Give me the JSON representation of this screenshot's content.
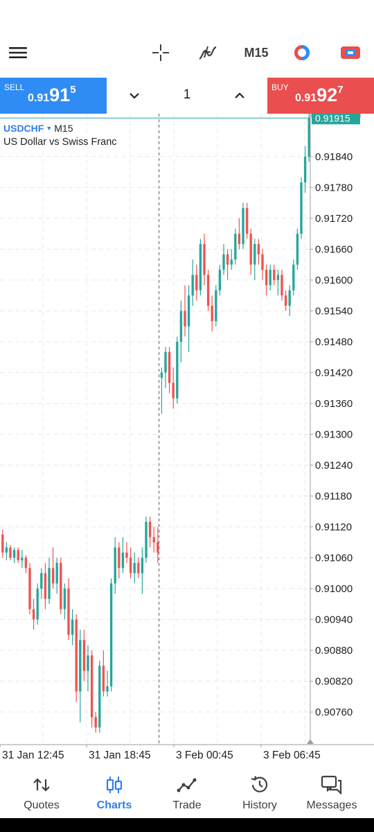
{
  "toolbar": {
    "menu_icon": "hamburger-menu-icon",
    "crosshair_icon": "crosshair-icon",
    "indicators_icon": "indicator-f-icon",
    "timeframe": "M15",
    "algo_icon": "algo-trading-icon",
    "oneclick_icon": "one-click-trading-icon"
  },
  "trade_panel": {
    "sell": {
      "label": "SELL",
      "price_small": "0.91",
      "price_big": "91",
      "price_sup": "5"
    },
    "buy": {
      "label": "BUY",
      "price_small": "0.91",
      "price_big": "92",
      "price_sup": "7"
    },
    "volume": "1"
  },
  "chart": {
    "symbol": "USDCHF",
    "timeframe": "M15",
    "description": "US Dollar vs Swiss Franc",
    "ask_label": "0.91927",
    "bid_label": "0.91915",
    "colors": {
      "bull": "#26a69a",
      "bear": "#ef5350",
      "ask_line": "#ef5350",
      "bid_line": "#26a69a",
      "grid": "#e8e8e8"
    }
  },
  "chart_data": {
    "type": "candlestick",
    "y_ticks": [
      "0.91840",
      "0.91780",
      "0.91720",
      "0.91660",
      "0.91600",
      "0.91540",
      "0.91480",
      "0.91420",
      "0.91360",
      "0.91300",
      "0.91240",
      "0.91180",
      "0.91120",
      "0.91060",
      "0.91000",
      "0.90940",
      "0.90880",
      "0.90820",
      "0.90760"
    ],
    "x_ticks": [
      "31 Jan 12:45",
      "31 Jan 18:45",
      "3 Feb 00:45",
      "3 Feb 06:45"
    ],
    "ylim": [
      0.9071,
      0.9191
    ],
    "period_separator_index": 41,
    "candles": [
      [
        0.91105,
        0.91115,
        0.9106,
        0.9107
      ],
      [
        0.9107,
        0.9109,
        0.91055,
        0.9108
      ],
      [
        0.9108,
        0.91085,
        0.91055,
        0.9106
      ],
      [
        0.9106,
        0.9108,
        0.9105,
        0.91075
      ],
      [
        0.91075,
        0.9108,
        0.9105,
        0.91055
      ],
      [
        0.91055,
        0.91075,
        0.9104,
        0.9106
      ],
      [
        0.9106,
        0.91065,
        0.9103,
        0.9104
      ],
      [
        0.9104,
        0.9105,
        0.9095,
        0.9096
      ],
      [
        0.9096,
        0.9098,
        0.9092,
        0.9094
      ],
      [
        0.9094,
        0.9101,
        0.9093,
        0.91
      ],
      [
        0.91,
        0.9104,
        0.9098,
        0.9103
      ],
      [
        0.9103,
        0.9105,
        0.9096,
        0.9098
      ],
      [
        0.9098,
        0.9106,
        0.9097,
        0.9104
      ],
      [
        0.9104,
        0.9108,
        0.91,
        0.9101
      ],
      [
        0.9101,
        0.9106,
        0.9099,
        0.9105
      ],
      [
        0.9105,
        0.9106,
        0.9095,
        0.9096
      ],
      [
        0.9096,
        0.9101,
        0.9094,
        0.91
      ],
      [
        0.91,
        0.9102,
        0.909,
        0.9091
      ],
      [
        0.9091,
        0.9096,
        0.9089,
        0.9094
      ],
      [
        0.9094,
        0.9095,
        0.9078,
        0.908
      ],
      [
        0.908,
        0.9092,
        0.9074,
        0.909
      ],
      [
        0.909,
        0.9092,
        0.9082,
        0.9084
      ],
      [
        0.9084,
        0.9089,
        0.908,
        0.9087
      ],
      [
        0.9087,
        0.9088,
        0.9073,
        0.9075
      ],
      [
        0.9075,
        0.9076,
        0.9072,
        0.9073
      ],
      [
        0.9073,
        0.9086,
        0.9072,
        0.9085
      ],
      [
        0.9085,
        0.9088,
        0.9079,
        0.908
      ],
      [
        0.908,
        0.9084,
        0.9079,
        0.9081
      ],
      [
        0.9081,
        0.9102,
        0.908,
        0.9101
      ],
      [
        0.9101,
        0.911,
        0.9099,
        0.9108
      ],
      [
        0.9108,
        0.9109,
        0.9102,
        0.9104
      ],
      [
        0.9104,
        0.911,
        0.9103,
        0.9107
      ],
      [
        0.9107,
        0.9109,
        0.9105,
        0.9106
      ],
      [
        0.9106,
        0.9108,
        0.9102,
        0.9103
      ],
      [
        0.9103,
        0.9107,
        0.9101,
        0.9105
      ],
      [
        0.9105,
        0.9106,
        0.9102,
        0.9103
      ],
      [
        0.9103,
        0.9108,
        0.9099,
        0.9106
      ],
      [
        0.9106,
        0.9114,
        0.9105,
        0.9113
      ],
      [
        0.9113,
        0.9114,
        0.9108,
        0.911
      ],
      [
        0.911,
        0.9112,
        0.9107,
        0.9109
      ],
      [
        0.9109,
        0.9112,
        0.9105,
        0.9107
      ],
      [
        0.9141,
        0.9143,
        0.9134,
        0.9142
      ],
      [
        0.9142,
        0.9147,
        0.9139,
        0.9146
      ],
      [
        0.9146,
        0.9147,
        0.9138,
        0.914
      ],
      [
        0.914,
        0.9143,
        0.9135,
        0.9137
      ],
      [
        0.9137,
        0.9149,
        0.9136,
        0.9148
      ],
      [
        0.9148,
        0.9156,
        0.9144,
        0.9154
      ],
      [
        0.9154,
        0.9159,
        0.9149,
        0.9151
      ],
      [
        0.9151,
        0.9159,
        0.9146,
        0.9157
      ],
      [
        0.9157,
        0.9164,
        0.9155,
        0.9161
      ],
      [
        0.9161,
        0.9163,
        0.9156,
        0.9158
      ],
      [
        0.9158,
        0.9168,
        0.9157,
        0.9167
      ],
      [
        0.9167,
        0.9169,
        0.9159,
        0.9161
      ],
      [
        0.9161,
        0.9162,
        0.9154,
        0.9155
      ],
      [
        0.9155,
        0.9157,
        0.915,
        0.9152
      ],
      [
        0.9152,
        0.9159,
        0.9151,
        0.9158
      ],
      [
        0.9158,
        0.9163,
        0.9157,
        0.9162
      ],
      [
        0.9162,
        0.9167,
        0.9161,
        0.9165
      ],
      [
        0.9165,
        0.9166,
        0.916,
        0.9163
      ],
      [
        0.9163,
        0.9166,
        0.9162,
        0.9164
      ],
      [
        0.9164,
        0.917,
        0.9163,
        0.9169
      ],
      [
        0.9169,
        0.9172,
        0.9166,
        0.9167
      ],
      [
        0.9167,
        0.9175,
        0.9166,
        0.9174
      ],
      [
        0.9174,
        0.9175,
        0.9168,
        0.9169
      ],
      [
        0.9169,
        0.917,
        0.9161,
        0.9163
      ],
      [
        0.9163,
        0.9168,
        0.916,
        0.9167
      ],
      [
        0.9167,
        0.9168,
        0.9163,
        0.9165
      ],
      [
        0.9165,
        0.9166,
        0.916,
        0.9162
      ],
      [
        0.9162,
        0.9163,
        0.9157,
        0.9159
      ],
      [
        0.9159,
        0.9163,
        0.9158,
        0.9162
      ],
      [
        0.9162,
        0.9163,
        0.9159,
        0.916
      ],
      [
        0.916,
        0.9162,
        0.9157,
        0.9161
      ],
      [
        0.9161,
        0.9162,
        0.9156,
        0.9157
      ],
      [
        0.9157,
        0.9158,
        0.9154,
        0.9155
      ],
      [
        0.9155,
        0.9159,
        0.9153,
        0.9158
      ],
      [
        0.9158,
        0.9164,
        0.9157,
        0.9163
      ],
      [
        0.9163,
        0.917,
        0.9162,
        0.9169
      ],
      [
        0.9169,
        0.918,
        0.9168,
        0.9179
      ],
      [
        0.9179,
        0.9186,
        0.9177,
        0.9184
      ],
      [
        0.9184,
        0.91927,
        0.9183,
        0.91915
      ]
    ]
  },
  "nav": {
    "quotes": "Quotes",
    "charts": "Charts",
    "trade": "Trade",
    "history": "History",
    "messages": "Messages"
  }
}
